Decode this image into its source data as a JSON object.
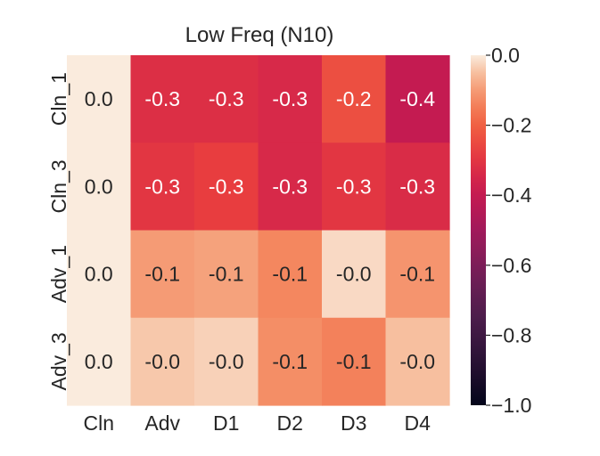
{
  "chart_data": {
    "type": "heatmap",
    "title": "Low Freq (N10)",
    "xlabel": "",
    "ylabel": "",
    "x_categories": [
      "Cln",
      "Adv",
      "D1",
      "D2",
      "D3",
      "D4"
    ],
    "y_categories": [
      "Cln_1",
      "Cln_3",
      "Adv_1",
      "Adv_3"
    ],
    "values": [
      [
        0.0,
        -0.32,
        -0.32,
        -0.34,
        -0.24,
        -0.4
      ],
      [
        0.0,
        -0.3,
        -0.28,
        -0.34,
        -0.3,
        -0.33
      ],
      [
        0.0,
        -0.1,
        -0.09,
        -0.13,
        -0.02,
        -0.11
      ],
      [
        0.0,
        -0.04,
        -0.03,
        -0.12,
        -0.14,
        -0.05
      ]
    ],
    "annotations": [
      [
        "0.0",
        "-0.3",
        "-0.3",
        "-0.3",
        "-0.2",
        "-0.4"
      ],
      [
        "0.0",
        "-0.3",
        "-0.3",
        "-0.3",
        "-0.3",
        "-0.3"
      ],
      [
        "0.0",
        "-0.1",
        "-0.1",
        "-0.1",
        "-0.0",
        "-0.1"
      ],
      [
        "0.0",
        "-0.0",
        "-0.0",
        "-0.1",
        "-0.1",
        "-0.0"
      ]
    ],
    "vmin": -1.0,
    "vmax": 0.0,
    "colormap": "rocket",
    "colorbar_ticks": [
      0.0,
      -0.2,
      -0.4,
      -0.6,
      -0.8,
      -1.0
    ],
    "colorbar_tick_labels": [
      "0.0",
      "−0.2",
      "−0.4",
      "−0.6",
      "−0.8",
      "−1.0"
    ],
    "colors": {
      "text_dark": "#262626",
      "text_light": "#ffffff"
    }
  }
}
